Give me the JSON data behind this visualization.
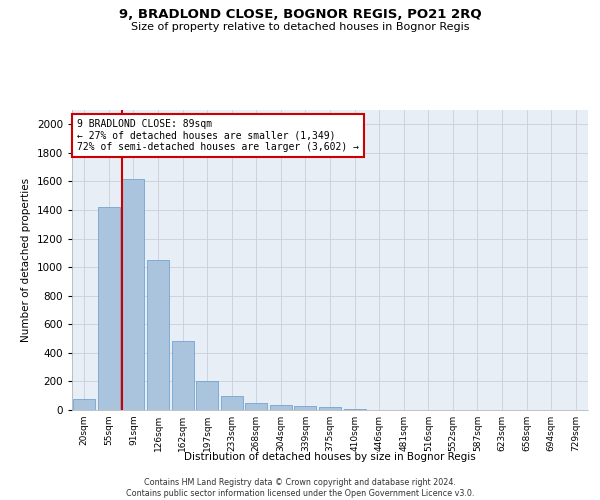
{
  "title": "9, BRADLOND CLOSE, BOGNOR REGIS, PO21 2RQ",
  "subtitle": "Size of property relative to detached houses in Bognor Regis",
  "xlabel": "Distribution of detached houses by size in Bognor Regis",
  "ylabel": "Number of detached properties",
  "bar_color": "#aac4de",
  "bar_edge_color": "#6699cc",
  "categories": [
    "20sqm",
    "55sqm",
    "91sqm",
    "126sqm",
    "162sqm",
    "197sqm",
    "233sqm",
    "268sqm",
    "304sqm",
    "339sqm",
    "375sqm",
    "410sqm",
    "446sqm",
    "481sqm",
    "516sqm",
    "552sqm",
    "587sqm",
    "623sqm",
    "658sqm",
    "694sqm",
    "729sqm"
  ],
  "values": [
    80,
    1420,
    1620,
    1050,
    480,
    205,
    100,
    48,
    35,
    25,
    18,
    10,
    0,
    0,
    0,
    0,
    0,
    0,
    0,
    0,
    0
  ],
  "ylim": [
    0,
    2100
  ],
  "yticks": [
    0,
    200,
    400,
    600,
    800,
    1000,
    1200,
    1400,
    1600,
    1800,
    2000
  ],
  "property_line_idx": 2,
  "annotation_text": "9 BRADLOND CLOSE: 89sqm\n← 27% of detached houses are smaller (1,349)\n72% of semi-detached houses are larger (3,602) →",
  "annotation_box_color": "#ffffff",
  "annotation_box_edge": "#cc0000",
  "property_line_color": "#cc0000",
  "background_color": "#ffffff",
  "ax_background": "#e8eef5",
  "grid_color": "#c8d0dc",
  "footnote": "Contains HM Land Registry data © Crown copyright and database right 2024.\nContains public sector information licensed under the Open Government Licence v3.0."
}
